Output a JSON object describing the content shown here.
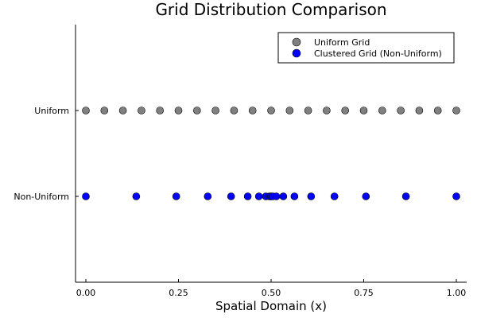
{
  "chart_data": {
    "type": "scatter",
    "title": "Grid Distribution Comparison",
    "xlabel": "Spatial Domain (x)",
    "ylabel": "",
    "xlim": [
      0,
      1
    ],
    "xticks": [
      {
        "value": 0,
        "label": "0.00"
      },
      {
        "value": 0.25,
        "label": "0.25"
      },
      {
        "value": 0.5,
        "label": "0.50"
      },
      {
        "value": 0.75,
        "label": "0.75"
      },
      {
        "value": 1,
        "label": "1.00"
      }
    ],
    "categories": [
      "Uniform",
      "Non-Uniform"
    ],
    "grid": false,
    "legend_position": "top-right",
    "series": [
      {
        "name": "Uniform Grid",
        "category": "Uniform",
        "color": "#808080",
        "x": [
          0.0,
          0.05,
          0.1,
          0.15,
          0.2,
          0.25,
          0.3,
          0.35,
          0.4,
          0.45,
          0.5,
          0.55,
          0.6,
          0.65,
          0.7,
          0.75,
          0.8,
          0.85,
          0.9,
          0.95,
          1.0
        ]
      },
      {
        "name": "Clustered Grid (Non-Uniform)",
        "category": "Non-Uniform",
        "color": "#0000ff",
        "x": [
          0.0,
          0.136,
          0.244,
          0.329,
          0.392,
          0.437,
          0.467,
          0.486,
          0.496,
          0.5,
          0.504,
          0.514,
          0.533,
          0.563,
          0.608,
          0.671,
          0.756,
          0.864,
          1.0
        ]
      }
    ]
  }
}
